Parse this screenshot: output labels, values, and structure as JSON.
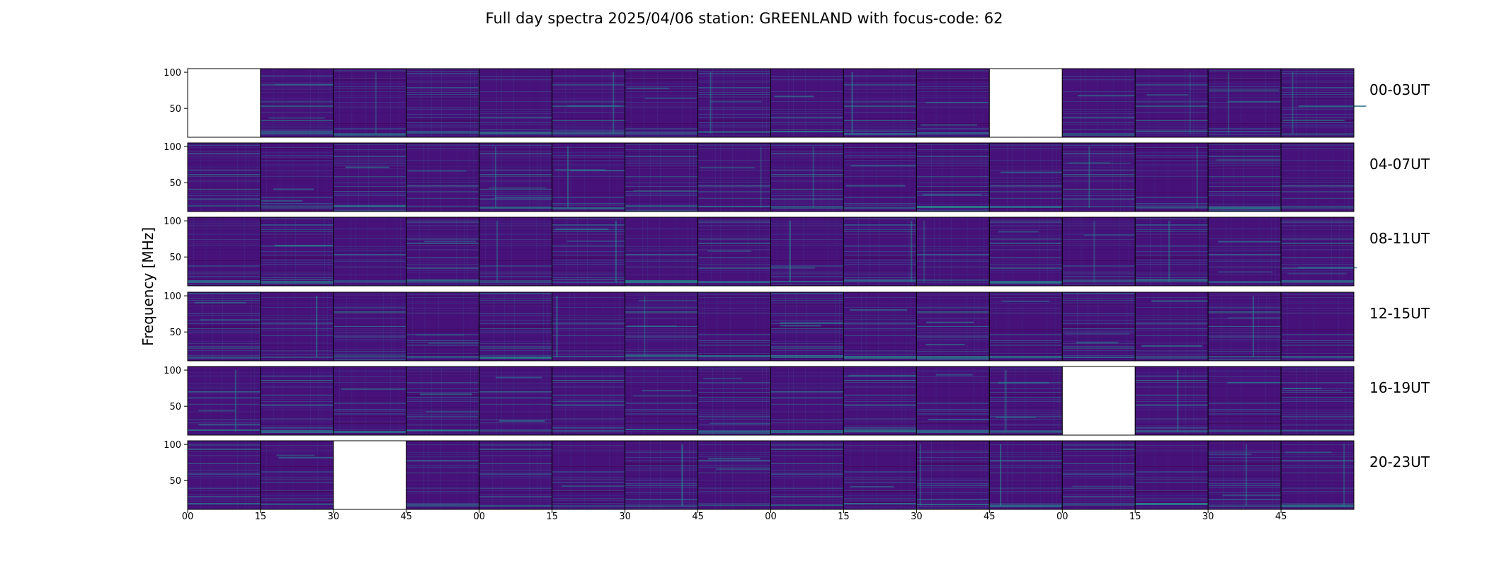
{
  "chart_data": {
    "type": "heatmap",
    "title": "Full day spectra 2025/04/06 station: GREENLAND with focus-code: 62",
    "ylabel": "Frequency [MHz]",
    "ylim": [
      10,
      105
    ],
    "yticks": [
      50,
      100
    ],
    "colormap": "viridis",
    "colors": {
      "background": "#46127a",
      "empty_panel": "#ffffff",
      "panel_border": "#000000"
    },
    "rows": [
      {
        "label": "00-03UT",
        "missing_panels": [
          0,
          11
        ]
      },
      {
        "label": "04-07UT",
        "missing_panels": []
      },
      {
        "label": "08-11UT",
        "missing_panels": []
      },
      {
        "label": "12-15UT",
        "missing_panels": []
      },
      {
        "label": "16-19UT",
        "missing_panels": [
          12
        ]
      },
      {
        "label": "20-23UT",
        "missing_panels": [
          2
        ]
      }
    ],
    "panels_per_row": 16,
    "xtick_labels": [
      "00",
      "15",
      "30",
      "45",
      "00",
      "15",
      "30",
      "45",
      "00",
      "15",
      "30",
      "45",
      "00",
      "15",
      "30",
      "45"
    ]
  }
}
